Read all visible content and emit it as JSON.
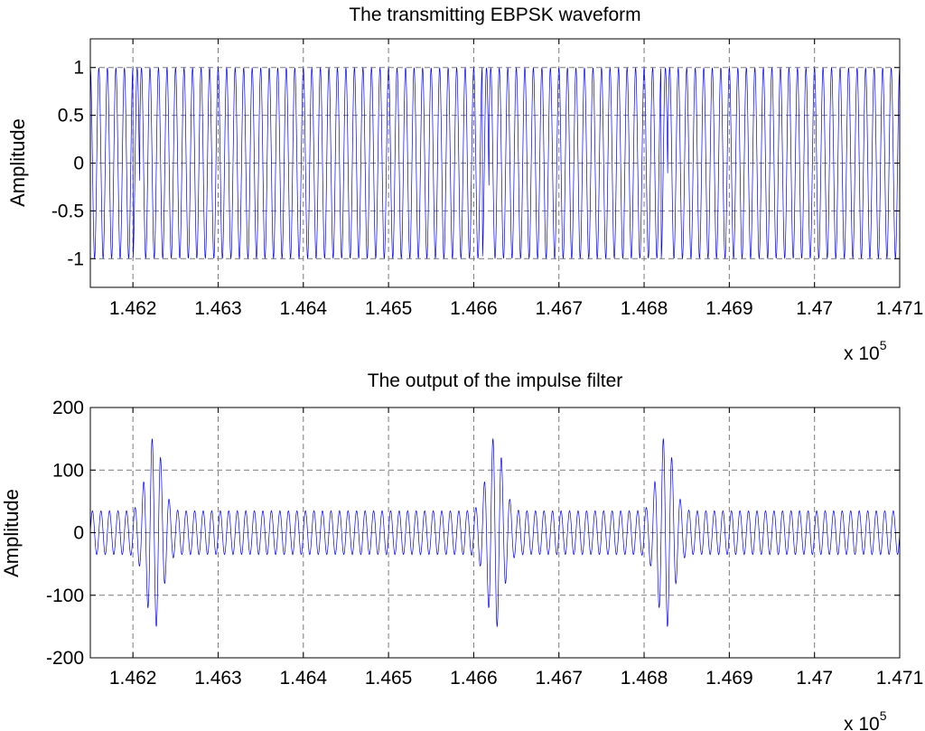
{
  "chart_data": [
    {
      "type": "line",
      "title": "The transmitting EBPSK waveform",
      "xlabel": "",
      "ylabel": "Amplitude",
      "x_multiplier": "x 10",
      "x_exponent": "5",
      "xlim": [
        1.4615,
        1.471
      ],
      "ylim": [
        -1.3,
        1.3
      ],
      "x_ticks": [
        1.462,
        1.463,
        1.464,
        1.465,
        1.466,
        1.467,
        1.468,
        1.469,
        1.47,
        1.471
      ],
      "x_tick_labels": [
        "1.462",
        "1.463",
        "1.464",
        "1.465",
        "1.466",
        "1.467",
        "1.468",
        "1.469",
        "1.47",
        "1.471"
      ],
      "y_ticks": [
        1,
        0.5,
        0,
        -0.5,
        -1
      ],
      "y_tick_labels": [
        "1",
        "0.5",
        "0",
        "-0.5",
        "-1"
      ],
      "grid": true,
      "line_color": "#0000ff",
      "carrier_cycles_per_unit": 10000,
      "amplitude": 1,
      "symbol_starts": [
        1.462,
        1.4661,
        1.4682
      ],
      "modulation_length": 8e-05,
      "series": [
        {
          "x": [
            1.4615,
            1.462,
            1.4621,
            1.4661,
            1.4662,
            1.4682,
            1.4683,
            1.471
          ],
          "values": [
            1,
            1,
            1,
            1,
            1,
            1,
            1,
            1
          ]
        }
      ]
    },
    {
      "type": "line",
      "title": "The output of the impulse filter",
      "xlabel": "",
      "ylabel": "Amplitude",
      "x_multiplier": "x 10",
      "x_exponent": "5",
      "xlim": [
        1.4615,
        1.471
      ],
      "ylim": [
        -200,
        200
      ],
      "x_ticks": [
        1.462,
        1.463,
        1.464,
        1.465,
        1.466,
        1.467,
        1.468,
        1.469,
        1.47,
        1.471
      ],
      "x_tick_labels": [
        "1.462",
        "1.463",
        "1.464",
        "1.465",
        "1.466",
        "1.467",
        "1.468",
        "1.469",
        "1.47",
        "1.471"
      ],
      "y_ticks": [
        200,
        100,
        0,
        -100,
        -200
      ],
      "y_tick_labels": [
        "200",
        "100",
        "0",
        "-100",
        "-200"
      ],
      "grid": true,
      "line_color": "#0000ff",
      "carrier_cycles_per_unit": 10000,
      "baseline_amplitude": 35,
      "burst_centers": [
        1.46225,
        1.46625,
        1.46825
      ],
      "burst_peak": 155,
      "burst_trough": -158,
      "series": [
        {
          "x": [
            1.4615,
            1.46225,
            1.4635,
            1.46625,
            1.4675,
            1.46825,
            1.4695,
            1.471
          ],
          "values": [
            35,
            155,
            35,
            155,
            35,
            150,
            35,
            35
          ]
        }
      ]
    }
  ]
}
